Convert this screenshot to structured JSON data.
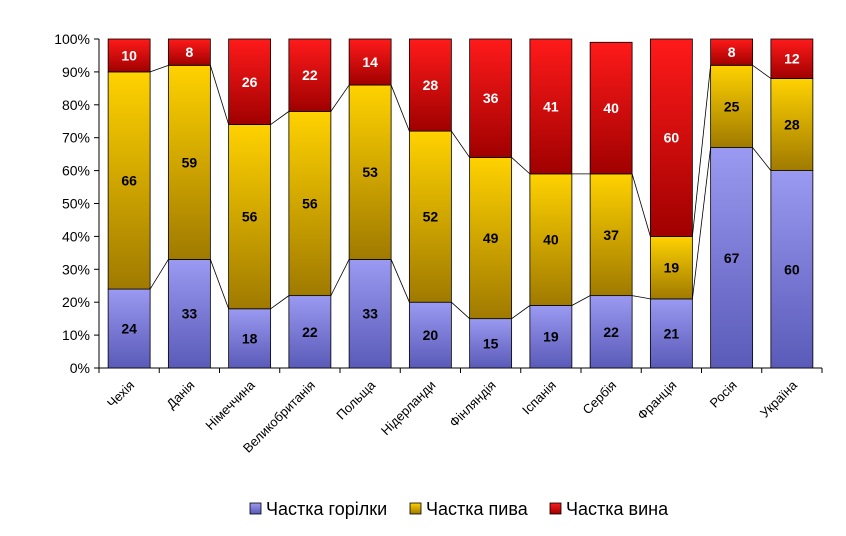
{
  "chart_data": {
    "type": "bar",
    "stacked": true,
    "percent": true,
    "categories": [
      "Чехія",
      "Данія",
      "Німеччина",
      "Великобританія",
      "Польща",
      "Нідерланди",
      "Фінляндія",
      "Іспанія",
      "Сербія",
      "Франція",
      "Росія",
      "Україна"
    ],
    "series": [
      {
        "name": "Частка горілки",
        "values": [
          24,
          33,
          18,
          22,
          33,
          20,
          15,
          19,
          22,
          21,
          67,
          60
        ],
        "color": "#8080e0"
      },
      {
        "name": "Частка пива",
        "values": [
          66,
          59,
          56,
          56,
          53,
          52,
          49,
          40,
          37,
          19,
          25,
          28
        ],
        "color": "#e6b800"
      },
      {
        "name": "Частка вина",
        "values": [
          10,
          8,
          26,
          22,
          14,
          28,
          36,
          41,
          40,
          60,
          8,
          12
        ],
        "color": "#e00000"
      }
    ],
    "y_ticks": [
      "0%",
      "10%",
      "20%",
      "30%",
      "40%",
      "50%",
      "60%",
      "70%",
      "80%",
      "90%",
      "100%"
    ],
    "ylim": [
      0,
      100
    ],
    "grid": false,
    "series_lines": true,
    "legend_position": "bottom"
  }
}
